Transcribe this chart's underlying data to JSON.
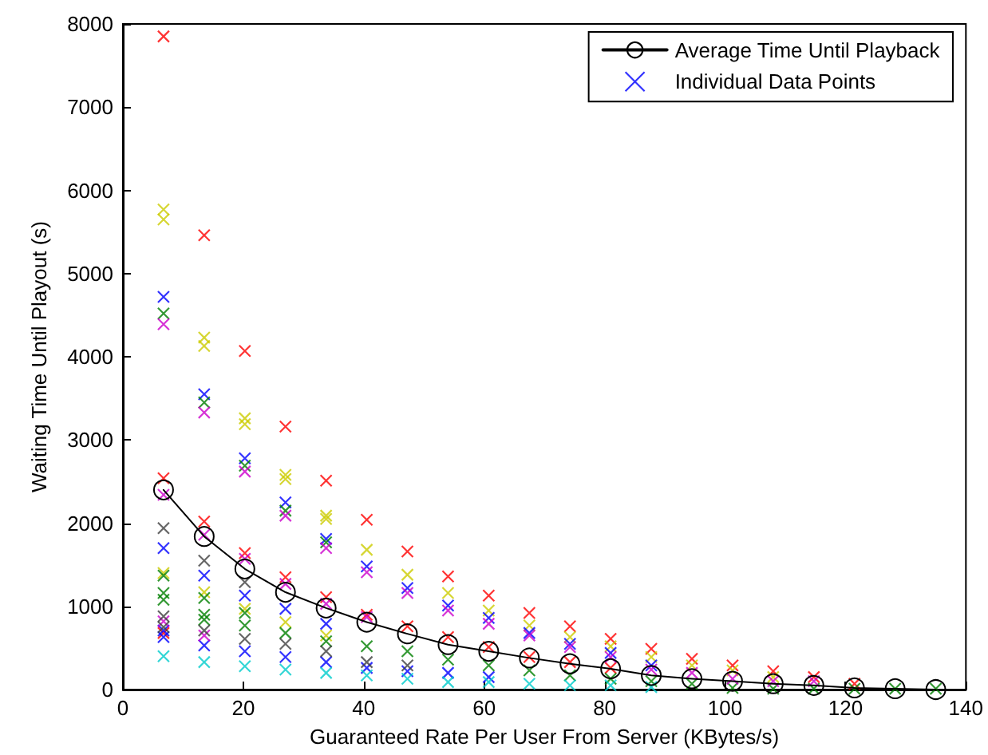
{
  "chart_data": {
    "type": "scatter",
    "xlabel": "Guaranteed Rate Per User From Server (KBytes/s)",
    "ylabel": "Waiting Time Until Playout (s)",
    "xlim": [
      0,
      140
    ],
    "xticks": [
      0,
      20,
      40,
      60,
      80,
      100,
      120,
      140
    ],
    "ylim": [
      0,
      8000
    ],
    "yticks": [
      0,
      1000,
      2000,
      3000,
      4000,
      5000,
      6000,
      7000,
      8000
    ],
    "grid": false,
    "legend": "top right",
    "series": [
      {
        "type": "scatter",
        "color": "#ff0000",
        "marker": "cross",
        "x": [
          6.75,
          6.75,
          6.75,
          13.5,
          13.5,
          20.25,
          20.25,
          27,
          27,
          33.75,
          33.75,
          40.5,
          40.5,
          47.25,
          47.25,
          54,
          54,
          60.75,
          60.75,
          67.5,
          67.5,
          74.25,
          74.25,
          81,
          81,
          87.75,
          94.5,
          101.25,
          108,
          114.75,
          121.5
        ],
        "values": [
          7850,
          2540,
          680,
          5460,
          2020,
          4070,
          1640,
          3160,
          1350,
          2510,
          1110,
          2040,
          900,
          1660,
          760,
          1360,
          630,
          1130,
          510,
          920,
          390,
          760,
          330,
          610,
          260,
          490,
          370,
          290,
          220,
          150,
          70
        ]
      },
      {
        "type": "scatter",
        "color": "#cccc00",
        "marker": "cross",
        "x": [
          6.75,
          6.75,
          6.75,
          13.5,
          13.5,
          13.5,
          20.25,
          20.25,
          20.25,
          27,
          27,
          27,
          33.75,
          33.75,
          33.75,
          40.5,
          47.25,
          54,
          60.75,
          67.5,
          74.25,
          81,
          87.75,
          94.5,
          101.25,
          108
        ],
        "values": [
          5770,
          5650,
          1400,
          4230,
          4130,
          1170,
          3260,
          3190,
          970,
          2580,
          2530,
          810,
          2090,
          2050,
          650,
          1680,
          1380,
          1160,
          950,
          770,
          630,
          520,
          390,
          290,
          230,
          150
        ]
      },
      {
        "type": "scatter",
        "name": "Individual Data Points",
        "color": "#0000ff",
        "marker": "cross",
        "x": [
          6.75,
          6.75,
          6.75,
          6.75,
          13.5,
          13.5,
          13.5,
          20.25,
          20.25,
          20.25,
          27,
          27,
          27,
          33.75,
          33.75,
          33.75,
          40.5,
          40.5,
          47.25,
          47.25,
          54,
          54,
          60.75,
          60.75,
          67.5,
          74.25,
          81,
          87.75
        ],
        "values": [
          4720,
          1700,
          710,
          630,
          3550,
          1370,
          530,
          2780,
          1130,
          460,
          2250,
          970,
          390,
          1810,
          790,
          330,
          1480,
          260,
          1220,
          220,
          1010,
          200,
          860,
          150,
          680,
          550,
          440,
          290
        ]
      },
      {
        "type": "scatter",
        "color": "#008000",
        "marker": "cross",
        "x": [
          6.75,
          6.75,
          6.75,
          6.75,
          13.5,
          13.5,
          13.5,
          13.5,
          20.25,
          20.25,
          20.25,
          27,
          27,
          33.75,
          33.75,
          40.5,
          47.25,
          54,
          60.75,
          67.5,
          74.25,
          81,
          87.75,
          94.5,
          101.25,
          108,
          114.75,
          121.5,
          128.25,
          135
        ],
        "values": [
          4520,
          1370,
          1160,
          1080,
          3450,
          1100,
          900,
          840,
          2690,
          920,
          770,
          2150,
          680,
          1770,
          580,
          520,
          460,
          360,
          290,
          230,
          170,
          130,
          100,
          70,
          20,
          10,
          10,
          10,
          10,
          10
        ]
      },
      {
        "type": "scatter",
        "color": "#cc00cc",
        "marker": "cross",
        "x": [
          6.75,
          6.75,
          6.75,
          13.5,
          13.5,
          13.5,
          20.25,
          20.25,
          27,
          27,
          33.75,
          33.75,
          40.5,
          40.5,
          47.25,
          54,
          60.75,
          67.5,
          74.25,
          81,
          87.75,
          94.5,
          101.25,
          108,
          114.75
        ],
        "values": [
          4390,
          2340,
          820,
          3330,
          1860,
          650,
          2620,
          1570,
          2090,
          1270,
          1700,
          1030,
          1410,
          870,
          1160,
          950,
          790,
          650,
          510,
          390,
          240,
          200,
          130,
          100,
          100
        ]
      },
      {
        "type": "scatter",
        "color": "#404040",
        "marker": "cross",
        "x": [
          6.75,
          6.75,
          6.75,
          13.5,
          13.5,
          20.25,
          20.25,
          27,
          33.75,
          40.5,
          47.25
        ],
        "values": [
          1940,
          880,
          750,
          1550,
          710,
          1290,
          610,
          550,
          460,
          330,
          290
        ]
      },
      {
        "type": "scatter",
        "color": "#00cccc",
        "marker": "cross",
        "x": [
          6.75,
          13.5,
          20.25,
          27,
          33.75,
          40.5,
          47.25,
          54,
          60.75,
          67.5,
          74.25,
          81,
          87.75
        ],
        "values": [
          400,
          330,
          280,
          240,
          200,
          170,
          130,
          90,
          90,
          70,
          50,
          50,
          30
        ]
      },
      {
        "type": "line",
        "name": "Average Time Until Playback",
        "color": "#000000",
        "marker": "circle",
        "line_style": "solid",
        "x": [
          6.75,
          13.5,
          20.25,
          27,
          33.75,
          40.5,
          47.25,
          54,
          60.75,
          67.5,
          74.25,
          81,
          87.75,
          94.5,
          101.25,
          108,
          114.75,
          121.5,
          128.25,
          135
        ],
        "values": [
          2400,
          1840,
          1450,
          1170,
          980,
          810,
          670,
          540,
          460,
          380,
          310,
          250,
          170,
          130,
          100,
          70,
          50,
          20,
          10,
          0
        ]
      }
    ]
  }
}
